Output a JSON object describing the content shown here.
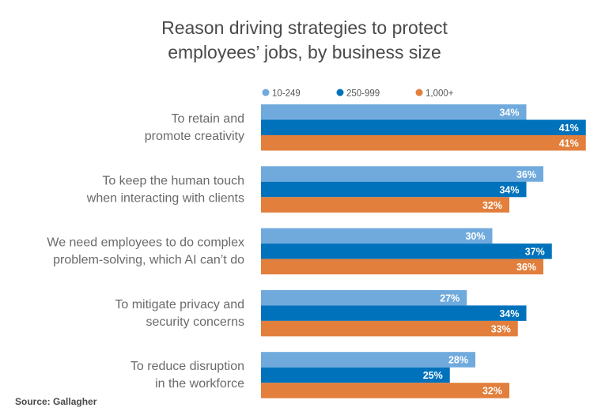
{
  "chart_data": {
    "type": "bar",
    "orientation": "horizontal",
    "title": "Reason driving strategies to protect employees’ jobs, by business size",
    "title_lines": [
      "Reason driving strategies to protect",
      "employees’ jobs, by business size"
    ],
    "source": "Source: Gallagher",
    "categories": [
      [
        "To retain and",
        "promote creativity"
      ],
      [
        "To keep the human touch",
        "when interacting with clients"
      ],
      [
        "We need employees to do complex",
        "problem-solving, which AI can’t do"
      ],
      [
        "To mitigate privacy and",
        "security concerns"
      ],
      [
        "To reduce disruption",
        "in the workforce"
      ]
    ],
    "series": [
      {
        "name": "10-249",
        "color": "#70aadd",
        "values": [
          34,
          36,
          30,
          27,
          28
        ]
      },
      {
        "name": "250-999",
        "color": "#0072bc",
        "values": [
          41,
          34,
          37,
          34,
          25
        ]
      },
      {
        "name": "1,000+",
        "color": "#e27f3c",
        "values": [
          41,
          32,
          36,
          33,
          32
        ]
      }
    ],
    "value_suffix": "%",
    "legend_position": "top",
    "grid": false
  }
}
